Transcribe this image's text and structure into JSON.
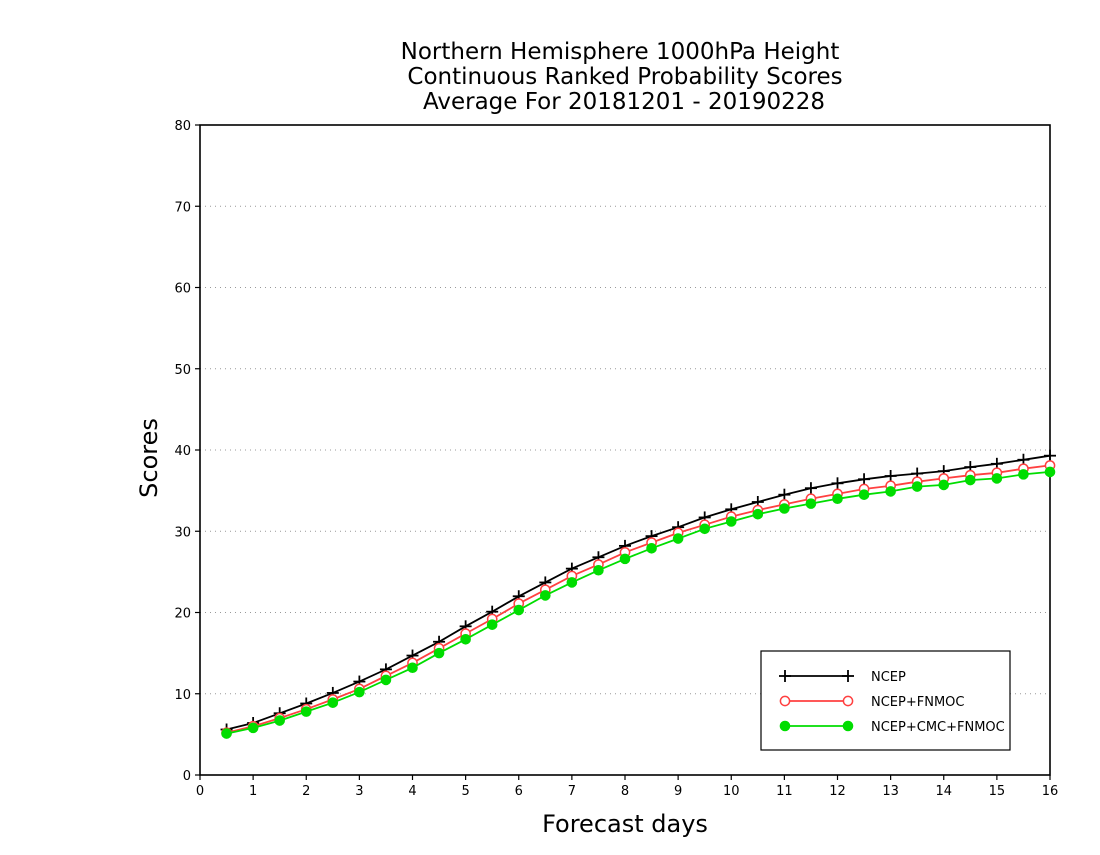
{
  "chart_data": {
    "type": "line",
    "title_lines": [
      "Northern Hemisphere 1000hPa Height",
      "Continuous Ranked Probability Scores",
      "Average For 20181201 - 20190228"
    ],
    "xlabel": "Forecast days",
    "ylabel": "Scores",
    "xlim": [
      0,
      16
    ],
    "ylim": [
      0,
      80
    ],
    "x_ticks": [
      0,
      1,
      2,
      3,
      4,
      5,
      6,
      7,
      8,
      9,
      10,
      11,
      12,
      13,
      14,
      15,
      16
    ],
    "y_ticks": [
      0,
      10,
      20,
      30,
      40,
      50,
      60,
      70,
      80
    ],
    "grid": "horizontal dotted",
    "legend_position": "bottom-right",
    "x": [
      0.5,
      1.0,
      1.5,
      2.0,
      2.5,
      3.0,
      3.5,
      4.0,
      4.5,
      5.0,
      5.5,
      6.0,
      6.5,
      7.0,
      7.5,
      8.0,
      8.5,
      9.0,
      9.5,
      10.0,
      10.5,
      11.0,
      11.5,
      12.0,
      12.5,
      13.0,
      13.5,
      14.0,
      14.5,
      15.0,
      15.5,
      16.0
    ],
    "series": [
      {
        "name": "NCEP",
        "color": "#000000",
        "marker": "plus",
        "values": [
          5.6,
          6.4,
          7.6,
          8.8,
          10.1,
          11.5,
          13.0,
          14.7,
          16.4,
          18.3,
          20.1,
          22.0,
          23.7,
          25.4,
          26.8,
          28.2,
          29.4,
          30.5,
          31.7,
          32.7,
          33.6,
          34.5,
          35.3,
          35.9,
          36.4,
          36.8,
          37.1,
          37.4,
          37.9,
          38.3,
          38.8,
          39.3
        ]
      },
      {
        "name": "NCEP+FNMOC",
        "color": "#ff4040",
        "marker": "open-circle",
        "values": [
          5.2,
          6.0,
          7.0,
          8.1,
          9.3,
          10.6,
          12.2,
          13.8,
          15.6,
          17.4,
          19.2,
          21.1,
          22.8,
          24.5,
          25.9,
          27.4,
          28.6,
          29.8,
          30.8,
          31.8,
          32.6,
          33.3,
          34.0,
          34.6,
          35.2,
          35.6,
          36.1,
          36.5,
          36.9,
          37.2,
          37.7,
          38.1
        ]
      },
      {
        "name": "NCEP+CMC+FNMOC",
        "color": "#00dd00",
        "marker": "filled-circle",
        "values": [
          5.1,
          5.8,
          6.7,
          7.8,
          8.9,
          10.2,
          11.7,
          13.2,
          15.0,
          16.7,
          18.5,
          20.3,
          22.1,
          23.7,
          25.2,
          26.6,
          27.9,
          29.1,
          30.3,
          31.2,
          32.1,
          32.8,
          33.4,
          34.0,
          34.5,
          34.9,
          35.5,
          35.7,
          36.3,
          36.5,
          37.0,
          37.3
        ]
      }
    ]
  }
}
